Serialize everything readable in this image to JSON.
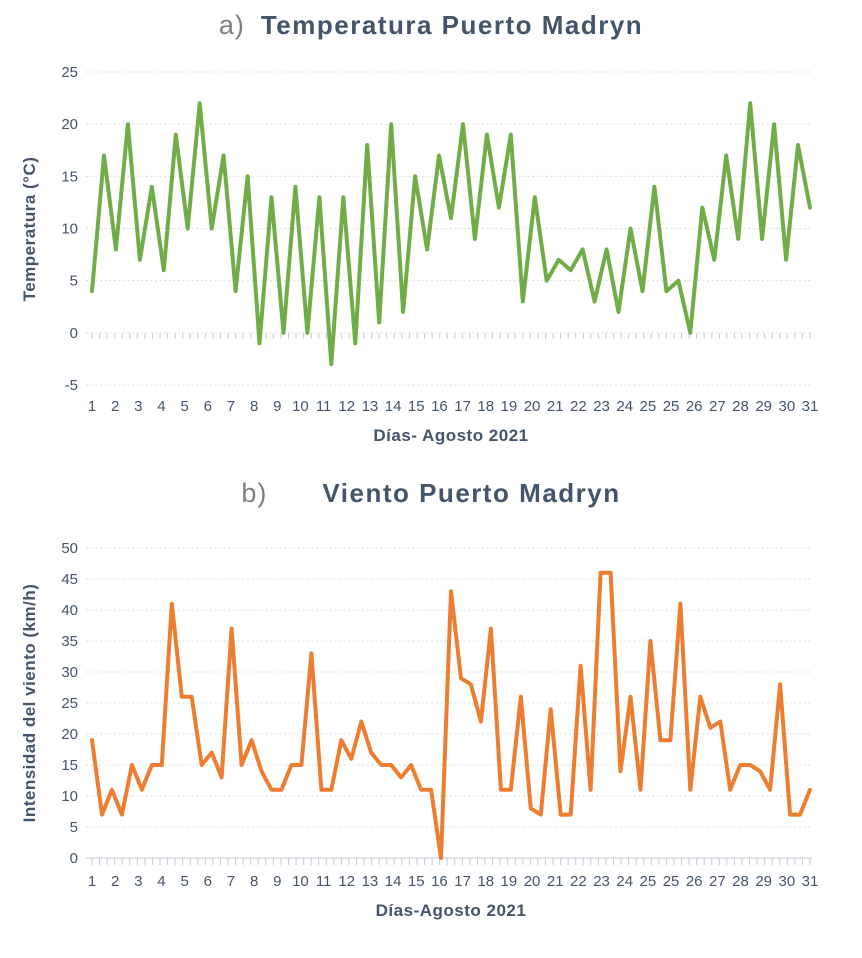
{
  "styles": {
    "title_color": "#44546A",
    "panel_label_color": "#7F7F7F",
    "axis_text_color": "#44546A",
    "gridline_color": "#D9DDE3",
    "axis_line_color": "#C6CCD4",
    "background": "#FFFFFF"
  },
  "chart_data": [
    {
      "type": "line",
      "panel_label": "a)",
      "title": "Temperatura Puerto Madryn",
      "xlabel": "Días- Agosto 2021",
      "ylabel": "Temperatura (°C)",
      "ylim": [
        -5,
        25
      ],
      "yticks": [
        25,
        20,
        15,
        10,
        5,
        0,
        -5
      ],
      "x_tick_labels": [
        "1",
        "2",
        "3",
        "4",
        "5",
        "6",
        "7",
        "8",
        "9",
        "10",
        "11",
        "12",
        "13",
        "14",
        "15",
        "16",
        "17",
        "18",
        "19",
        "20",
        "21",
        "22",
        "23",
        "24",
        "25",
        "25",
        "26",
        "27",
        "28",
        "29",
        "30",
        "31"
      ],
      "grid": true,
      "legend": "none",
      "series": [
        {
          "name": "Temperatura",
          "color": "#70AD47",
          "values": [
            4,
            17,
            8,
            20,
            7,
            14,
            6,
            19,
            10,
            22,
            10,
            17,
            4,
            15,
            -1,
            13,
            0,
            14,
            0,
            13,
            -3,
            13,
            -1,
            18,
            1,
            20,
            2,
            15,
            8,
            17,
            11,
            20,
            9,
            19,
            12,
            19,
            3,
            13,
            5,
            7,
            6,
            8,
            3,
            8,
            2,
            10,
            4,
            14,
            4,
            5,
            0,
            12,
            7,
            17,
            9,
            22,
            9,
            20,
            7,
            18,
            12
          ]
        }
      ]
    },
    {
      "type": "line",
      "panel_label": "b)",
      "title": "Viento Puerto Madryn",
      "xlabel": "Días-Agosto 2021",
      "ylabel": "Intensidad del viento (km/h)",
      "ylim": [
        0,
        50
      ],
      "yticks": [
        50,
        45,
        40,
        35,
        30,
        25,
        20,
        15,
        10,
        5,
        0
      ],
      "x_tick_labels": [
        "1",
        "2",
        "3",
        "4",
        "5",
        "6",
        "7",
        "8",
        "9",
        "10",
        "11",
        "12",
        "13",
        "14",
        "15",
        "16",
        "17",
        "18",
        "19",
        "20",
        "21",
        "22",
        "23",
        "24",
        "25",
        "25",
        "26",
        "27",
        "28",
        "29",
        "30",
        "31"
      ],
      "grid": true,
      "legend": "none",
      "series": [
        {
          "name": "Intensidad del viento",
          "color": "#ED7D31",
          "values": [
            19,
            7,
            11,
            7,
            15,
            11,
            15,
            15,
            41,
            26,
            26,
            15,
            17,
            13,
            37,
            15,
            19,
            14,
            11,
            11,
            15,
            15,
            33,
            11,
            11,
            19,
            16,
            22,
            17,
            15,
            15,
            13,
            15,
            11,
            11,
            0,
            43,
            29,
            28,
            22,
            37,
            11,
            11,
            26,
            8,
            7,
            24,
            7,
            7,
            31,
            11,
            46,
            46,
            14,
            26,
            11,
            35,
            19,
            19,
            41,
            11,
            26,
            21,
            22,
            11,
            15,
            15,
            14,
            11,
            28,
            7,
            7,
            11
          ]
        }
      ]
    }
  ]
}
